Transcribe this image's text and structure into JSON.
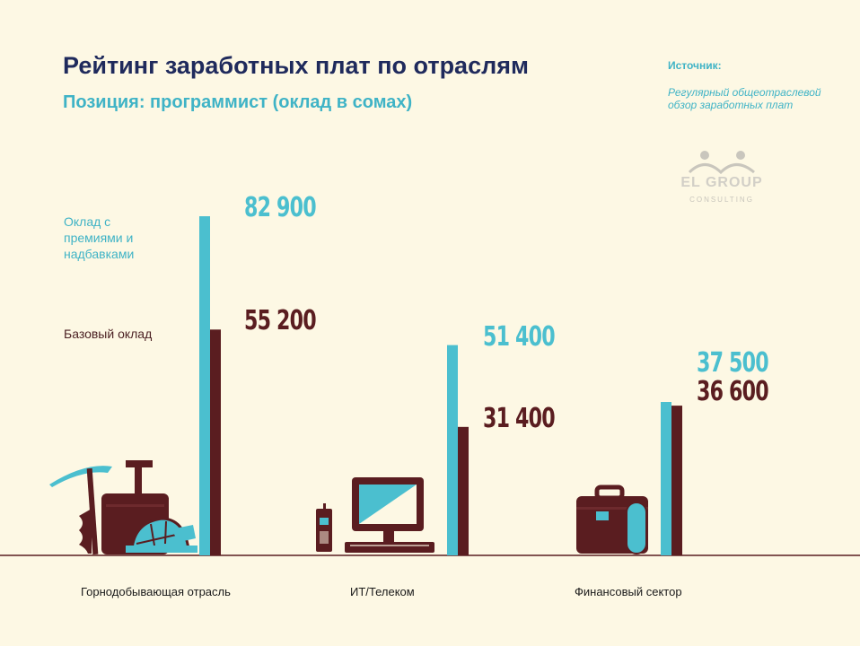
{
  "title": "Рейтинг заработных плат по отраслям",
  "subtitle": "Позиция: программист (оклад в сомах)",
  "source": {
    "label": "Источник:",
    "text": "Регулярный общеотраслевой обзор заработных плат"
  },
  "logo": {
    "name": "EL GROUP",
    "sub": "CONSULTING",
    "icon": "people-logo-icon"
  },
  "legend": {
    "bonus": "Оклад с премиями и надбавками",
    "base": "Базовый оклад"
  },
  "colors": {
    "background": "#fdf8e4",
    "bonus": "#4bbfcf",
    "base": "#5a1d20",
    "title": "#1f2a5c"
  },
  "chart_data": {
    "type": "bar",
    "title": "Рейтинг заработных плат по отраслям",
    "subtitle": "Позиция: программист (оклад в сомах)",
    "categories": [
      "Горнодобывающая отрасль",
      "ИТ/Телеком",
      "Финансовый сектор"
    ],
    "series": [
      {
        "name": "Оклад с премиями и надбавками",
        "values": [
          82900,
          51400,
          37500
        ],
        "labels": [
          "82 900",
          "51 400",
          "37 500"
        ],
        "color": "#4bbfcf"
      },
      {
        "name": "Базовый оклад",
        "values": [
          55200,
          31400,
          36600
        ],
        "labels": [
          "55 200",
          "31 400",
          "36 600"
        ],
        "color": "#5a1d20"
      }
    ],
    "icons": [
      "mining-tools-icon",
      "computer-phone-icon",
      "briefcase-icon"
    ],
    "grid": false,
    "legend_position": "left"
  }
}
